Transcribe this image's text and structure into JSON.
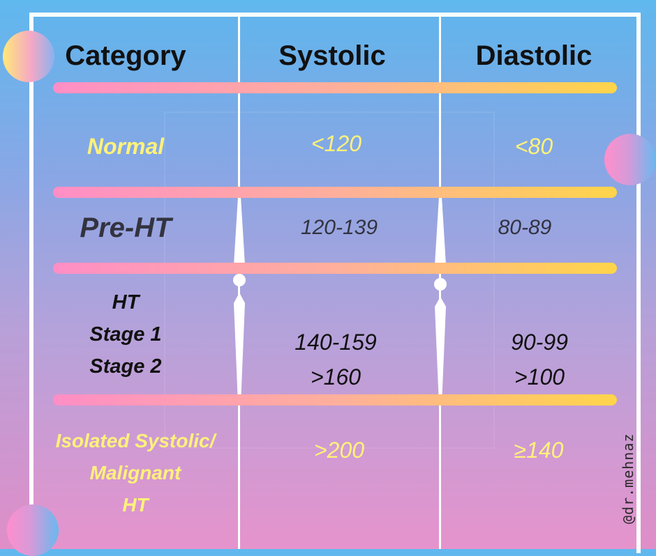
{
  "headers": {
    "category": "Category",
    "systolic": "Systolic",
    "diastolic": "Diastolic"
  },
  "rows": [
    {
      "category": "Normal",
      "systolic": "<120",
      "diastolic": "<80"
    },
    {
      "category": "Pre-HT",
      "systolic": "120-139",
      "diastolic": "80-89"
    },
    {
      "category": [
        "HT",
        "Stage 1",
        "Stage 2"
      ],
      "systolic": [
        "140-159",
        ">160"
      ],
      "diastolic": [
        "90-99",
        ">100"
      ]
    },
    {
      "category": [
        "Isolated Systolic/",
        "Malignant",
        "HT"
      ],
      "systolic": ">200",
      "diastolic": "≥140"
    }
  ],
  "credit": "@dr.mehnaz",
  "colors": {
    "highlight_text": "#fff27a",
    "band_start": "#ff8ec6",
    "band_end": "#ffd54a",
    "frame": "#ffffff"
  }
}
